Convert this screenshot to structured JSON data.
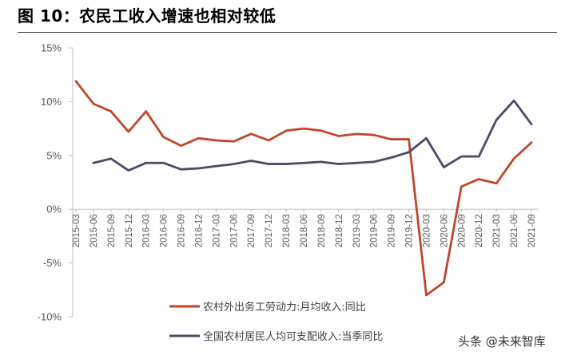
{
  "figure": {
    "title": "图 10：农民工收入增速也相对较低",
    "watermark": "头条 @未来智库"
  },
  "colors": {
    "series1": "#c0462a",
    "series2": "#4b4a6b",
    "axis": "#bfbfbf",
    "tick_text": "#595959"
  },
  "chart_data": {
    "type": "line",
    "title": "",
    "xlabel": "",
    "ylabel": "",
    "ylim": [
      -10,
      15
    ],
    "yticks": [
      15,
      10,
      5,
      0,
      -5,
      -10
    ],
    "ytick_labels": [
      "15%",
      "10%",
      "5%",
      "0%",
      "-5%",
      "-10%"
    ],
    "grid": false,
    "legend": "bottom-center",
    "x": [
      "2015-03",
      "2015-06",
      "2015-09",
      "2015-12",
      "2016-03",
      "2016-06",
      "2016-09",
      "2016-12",
      "2017-03",
      "2017-06",
      "2017-09",
      "2017-12",
      "2018-03",
      "2018-06",
      "2018-09",
      "2018-12",
      "2019-03",
      "2019-06",
      "2019-09",
      "2019-12",
      "2020-03",
      "2020-06",
      "2020-09",
      "2020-12",
      "2021-03",
      "2021-06",
      "2021-09"
    ],
    "series": [
      {
        "name": "农村外出务工劳动力:月均收入:同比",
        "values": [
          11.9,
          9.8,
          9.1,
          7.2,
          9.1,
          6.7,
          5.9,
          6.6,
          6.4,
          6.3,
          7.0,
          6.4,
          7.3,
          7.5,
          7.3,
          6.8,
          7.0,
          6.9,
          6.5,
          6.5,
          -8.0,
          -6.8,
          2.1,
          2.8,
          2.4,
          4.7,
          6.2
        ]
      },
      {
        "name": "全国农村居民人均可支配收入:当季同比",
        "values": [
          null,
          4.3,
          4.7,
          3.6,
          4.3,
          4.3,
          3.7,
          3.8,
          4.0,
          4.2,
          4.5,
          4.2,
          4.2,
          4.3,
          4.4,
          4.2,
          4.3,
          4.4,
          4.8,
          5.3,
          6.6,
          3.9,
          4.9,
          4.9,
          8.3,
          10.1,
          7.9
        ]
      }
    ]
  }
}
